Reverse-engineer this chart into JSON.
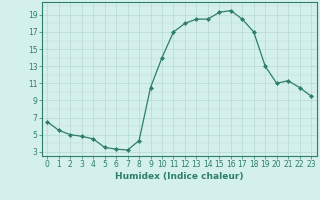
{
  "x": [
    0,
    1,
    2,
    3,
    4,
    5,
    6,
    7,
    8,
    9,
    10,
    11,
    12,
    13,
    14,
    15,
    16,
    17,
    18,
    19,
    20,
    21,
    22,
    23
  ],
  "y": [
    6.5,
    5.5,
    5.0,
    4.8,
    4.5,
    3.5,
    3.3,
    3.2,
    4.3,
    10.5,
    14.0,
    17.0,
    18.0,
    18.5,
    18.5,
    19.3,
    19.5,
    18.5,
    17.0,
    13.0,
    11.0,
    11.3,
    10.5,
    9.5
  ],
  "line_color": "#2e7d6e",
  "marker": "D",
  "marker_size": 2.0,
  "bg_color": "#d4f0ec",
  "grid_color": "#b8d8d4",
  "xlabel": "Humidex (Indice chaleur)",
  "xlim": [
    -0.5,
    23.5
  ],
  "ylim": [
    2.5,
    20.5
  ],
  "yticks": [
    3,
    5,
    7,
    9,
    11,
    13,
    15,
    17,
    19
  ],
  "xticks": [
    0,
    1,
    2,
    3,
    4,
    5,
    6,
    7,
    8,
    9,
    10,
    11,
    12,
    13,
    14,
    15,
    16,
    17,
    18,
    19,
    20,
    21,
    22,
    23
  ],
  "xtick_labels": [
    "0",
    "1",
    "2",
    "3",
    "4",
    "5",
    "6",
    "7",
    "8",
    "9",
    "10",
    "11",
    "12",
    "13",
    "14",
    "15",
    "16",
    "17",
    "18",
    "19",
    "20",
    "21",
    "22",
    "23"
  ],
  "axis_fontsize": 5.5,
  "label_fontsize": 6.5
}
